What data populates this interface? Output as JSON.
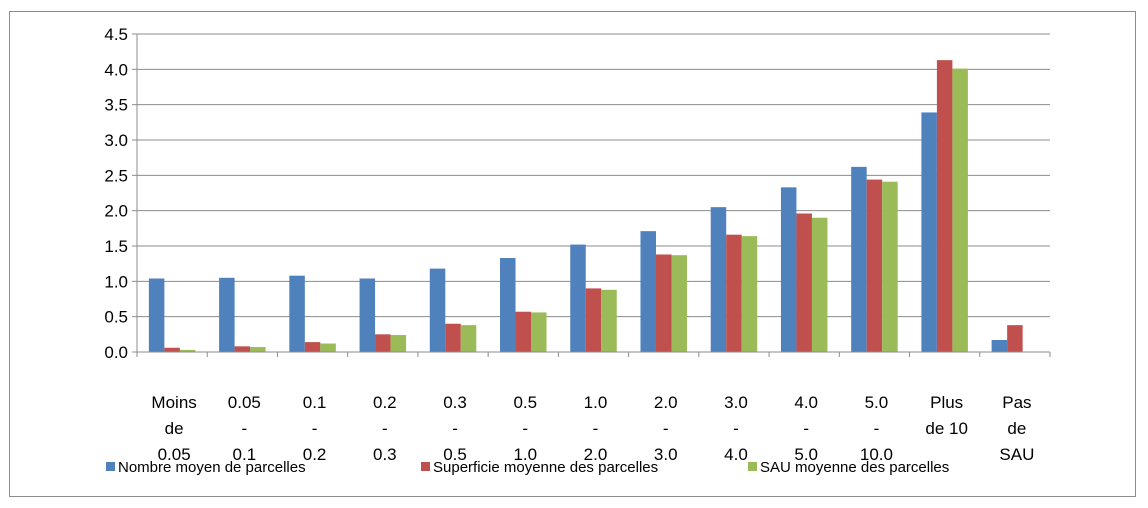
{
  "chart_data": {
    "type": "bar",
    "categories": [
      [
        "Moins",
        "de",
        "0.05"
      ],
      [
        "0.05",
        "-",
        "0.1"
      ],
      [
        "0.1",
        "-",
        "0.2"
      ],
      [
        "0.2",
        "-",
        "0.3"
      ],
      [
        "0.3",
        "-",
        "0.5"
      ],
      [
        "0.5",
        "-",
        "1.0"
      ],
      [
        "1.0",
        "-",
        "2.0"
      ],
      [
        "2.0",
        "-",
        "3.0"
      ],
      [
        "3.0",
        "-",
        "4.0"
      ],
      [
        "4.0",
        "-",
        "5.0"
      ],
      [
        "5.0",
        "-",
        "10.0"
      ],
      [
        "Plus",
        "de 10"
      ],
      [
        "Pas",
        "de",
        "SAU"
      ]
    ],
    "series": [
      {
        "name": "Nombre moyen de parcelles",
        "color": "#4f81bd",
        "values": [
          1.04,
          1.05,
          1.08,
          1.04,
          1.18,
          1.33,
          1.52,
          1.71,
          2.05,
          2.33,
          2.62,
          3.39,
          0.17
        ]
      },
      {
        "name": "Superficie moyenne des parcelles",
        "color": "#c0504d",
        "values": [
          0.06,
          0.08,
          0.14,
          0.25,
          0.4,
          0.57,
          0.9,
          1.38,
          1.66,
          1.96,
          2.44,
          4.13,
          0.38
        ]
      },
      {
        "name": "SAU moyenne des parcelles",
        "color": "#9bbb59",
        "values": [
          0.03,
          0.07,
          0.12,
          0.24,
          0.38,
          0.56,
          0.88,
          1.37,
          1.64,
          1.9,
          2.41,
          4.01,
          null
        ]
      }
    ],
    "y_ticks": [
      "0.0",
      "0.5",
      "1.0",
      "1.5",
      "2.0",
      "2.5",
      "3.0",
      "3.5",
      "4.0",
      "4.5"
    ],
    "ylim": [
      0,
      4.5
    ],
    "grid": true,
    "legend_position": "bottom"
  }
}
